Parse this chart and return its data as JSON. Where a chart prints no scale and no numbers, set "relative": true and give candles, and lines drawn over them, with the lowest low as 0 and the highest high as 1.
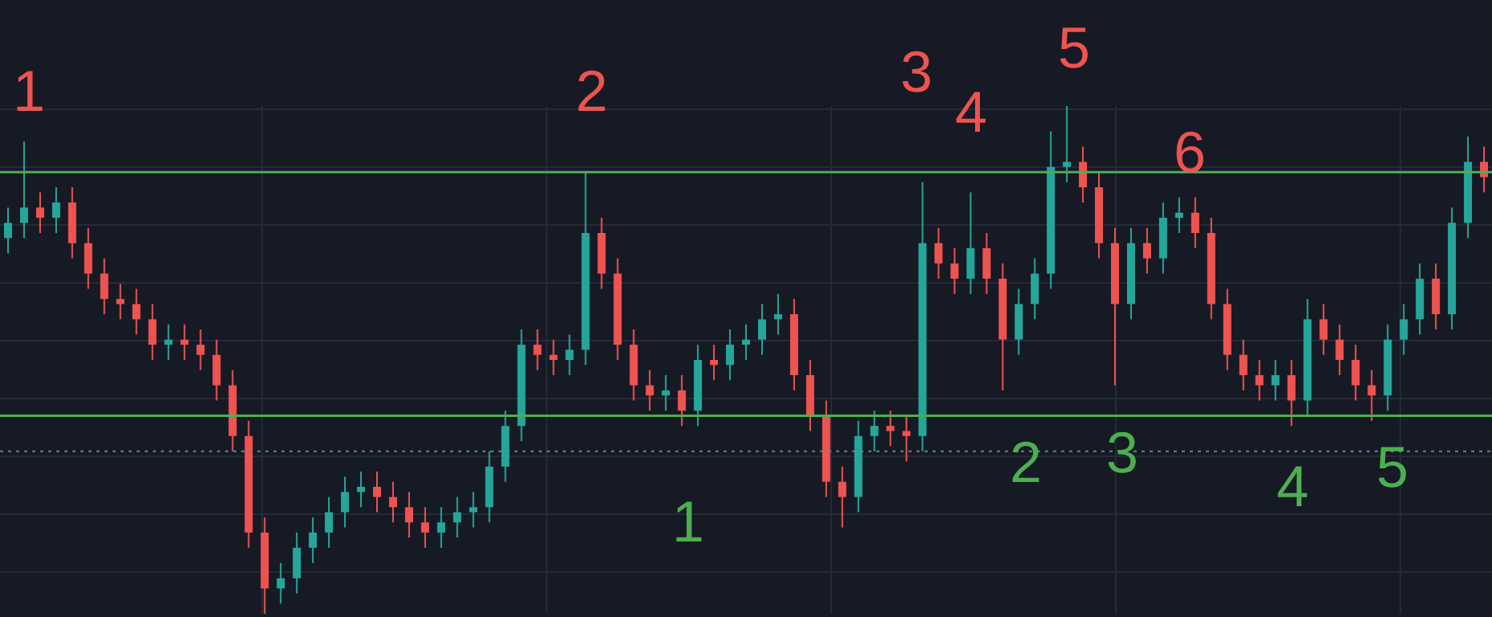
{
  "chart_data": {
    "type": "candlestick",
    "relative": true,
    "grid": true,
    "categories": [
      null,
      null,
      null,
      null,
      null,
      null,
      null,
      null,
      null,
      null,
      null,
      null,
      null,
      null,
      null,
      null,
      null,
      null,
      null,
      null,
      null,
      null,
      null,
      null,
      null,
      null,
      null,
      null,
      null,
      null,
      null,
      null,
      null,
      null,
      null,
      null,
      null,
      null,
      null,
      null,
      null,
      null,
      null,
      null,
      null,
      null,
      null,
      null,
      null,
      null,
      null,
      null,
      null,
      null,
      null,
      null,
      null,
      null,
      null,
      null,
      null,
      null,
      null,
      null,
      null,
      null,
      null,
      null,
      null,
      null,
      null,
      null,
      null,
      null,
      null,
      null,
      null,
      null,
      null,
      null,
      null,
      null,
      null,
      null,
      null,
      null,
      null,
      null,
      null,
      null,
      null,
      null,
      null
    ],
    "ohlc": [
      [
        0.74,
        0.8,
        0.71,
        0.77
      ],
      [
        0.77,
        0.93,
        0.74,
        0.8
      ],
      [
        0.8,
        0.83,
        0.75,
        0.78
      ],
      [
        0.78,
        0.84,
        0.75,
        0.81
      ],
      [
        0.81,
        0.84,
        0.7,
        0.73
      ],
      [
        0.73,
        0.76,
        0.64,
        0.67
      ],
      [
        0.67,
        0.7,
        0.59,
        0.62
      ],
      [
        0.62,
        0.65,
        0.58,
        0.61
      ],
      [
        0.61,
        0.64,
        0.55,
        0.58
      ],
      [
        0.58,
        0.61,
        0.5,
        0.53
      ],
      [
        0.53,
        0.57,
        0.5,
        0.54
      ],
      [
        0.54,
        0.57,
        0.5,
        0.53
      ],
      [
        0.53,
        0.56,
        0.48,
        0.51
      ],
      [
        0.51,
        0.54,
        0.42,
        0.45
      ],
      [
        0.45,
        0.48,
        0.32,
        0.35
      ],
      [
        0.35,
        0.38,
        0.13,
        0.16
      ],
      [
        0.16,
        0.19,
        0,
        0.05
      ],
      [
        0.05,
        0.1,
        0.02,
        0.07
      ],
      [
        0.07,
        0.16,
        0.04,
        0.13
      ],
      [
        0.13,
        0.19,
        0.1,
        0.16
      ],
      [
        0.16,
        0.23,
        0.13,
        0.2
      ],
      [
        0.2,
        0.27,
        0.17,
        0.24
      ],
      [
        0.24,
        0.28,
        0.21,
        0.25
      ],
      [
        0.25,
        0.28,
        0.2,
        0.23
      ],
      [
        0.23,
        0.26,
        0.18,
        0.21
      ],
      [
        0.21,
        0.24,
        0.15,
        0.18
      ],
      [
        0.18,
        0.21,
        0.13,
        0.16
      ],
      [
        0.16,
        0.21,
        0.13,
        0.18
      ],
      [
        0.18,
        0.23,
        0.15,
        0.2
      ],
      [
        0.2,
        0.24,
        0.17,
        0.21
      ],
      [
        0.21,
        0.32,
        0.18,
        0.29
      ],
      [
        0.29,
        0.4,
        0.26,
        0.37
      ],
      [
        0.37,
        0.56,
        0.34,
        0.53
      ],
      [
        0.53,
        0.56,
        0.48,
        0.51
      ],
      [
        0.51,
        0.54,
        0.47,
        0.5
      ],
      [
        0.5,
        0.55,
        0.47,
        0.52
      ],
      [
        0.52,
        0.87,
        0.49,
        0.75
      ],
      [
        0.75,
        0.78,
        0.64,
        0.67
      ],
      [
        0.67,
        0.7,
        0.5,
        0.53
      ],
      [
        0.53,
        0.56,
        0.42,
        0.45
      ],
      [
        0.45,
        0.48,
        0.4,
        0.43
      ],
      [
        0.43,
        0.47,
        0.4,
        0.44
      ],
      [
        0.44,
        0.47,
        0.37,
        0.4
      ],
      [
        0.4,
        0.53,
        0.37,
        0.5
      ],
      [
        0.5,
        0.53,
        0.46,
        0.49
      ],
      [
        0.49,
        0.56,
        0.46,
        0.53
      ],
      [
        0.53,
        0.57,
        0.5,
        0.54
      ],
      [
        0.54,
        0.61,
        0.51,
        0.58
      ],
      [
        0.58,
        0.63,
        0.55,
        0.59
      ],
      [
        0.59,
        0.62,
        0.44,
        0.47
      ],
      [
        0.47,
        0.5,
        0.36,
        0.39
      ],
      [
        0.39,
        0.42,
        0.23,
        0.26
      ],
      [
        0.26,
        0.29,
        0.17,
        0.23
      ],
      [
        0.23,
        0.38,
        0.2,
        0.35
      ],
      [
        0.35,
        0.4,
        0.32,
        0.37
      ],
      [
        0.37,
        0.4,
        0.33,
        0.36
      ],
      [
        0.36,
        0.39,
        0.3,
        0.35
      ],
      [
        0.35,
        0.85,
        0.32,
        0.73
      ],
      [
        0.73,
        0.76,
        0.66,
        0.69
      ],
      [
        0.69,
        0.72,
        0.63,
        0.66
      ],
      [
        0.66,
        0.83,
        0.63,
        0.72
      ],
      [
        0.72,
        0.75,
        0.63,
        0.66
      ],
      [
        0.66,
        0.69,
        0.44,
        0.54
      ],
      [
        0.54,
        0.64,
        0.51,
        0.61
      ],
      [
        0.61,
        0.7,
        0.58,
        0.67
      ],
      [
        0.67,
        0.95,
        0.64,
        0.88
      ],
      [
        0.88,
        1,
        0.85,
        0.89
      ],
      [
        0.89,
        0.92,
        0.81,
        0.84
      ],
      [
        0.84,
        0.87,
        0.7,
        0.73
      ],
      [
        0.73,
        0.76,
        0.45,
        0.61
      ],
      [
        0.61,
        0.76,
        0.58,
        0.73
      ],
      [
        0.73,
        0.76,
        0.67,
        0.7
      ],
      [
        0.7,
        0.81,
        0.67,
        0.78
      ],
      [
        0.78,
        0.82,
        0.75,
        0.79
      ],
      [
        0.79,
        0.82,
        0.72,
        0.75
      ],
      [
        0.75,
        0.78,
        0.58,
        0.61
      ],
      [
        0.61,
        0.64,
        0.48,
        0.51
      ],
      [
        0.51,
        0.54,
        0.44,
        0.47
      ],
      [
        0.47,
        0.5,
        0.42,
        0.45
      ],
      [
        0.45,
        0.5,
        0.42,
        0.47
      ],
      [
        0.47,
        0.5,
        0.37,
        0.42
      ],
      [
        0.42,
        0.62,
        0.39,
        0.58
      ],
      [
        0.58,
        0.61,
        0.51,
        0.54
      ],
      [
        0.54,
        0.57,
        0.47,
        0.5
      ],
      [
        0.5,
        0.53,
        0.42,
        0.45
      ],
      [
        0.45,
        0.48,
        0.38,
        0.43
      ],
      [
        0.43,
        0.57,
        0.4,
        0.54
      ],
      [
        0.54,
        0.61,
        0.51,
        0.58
      ],
      [
        0.58,
        0.69,
        0.55,
        0.66
      ],
      [
        0.66,
        0.69,
        0.56,
        0.59
      ],
      [
        0.59,
        0.8,
        0.56,
        0.77
      ],
      [
        0.77,
        0.94,
        0.74,
        0.89
      ],
      [
        0.89,
        0.92,
        0.83,
        0.86
      ]
    ],
    "ref_lines": [
      {
        "axis": "y",
        "value": 0.87,
        "color": "#4caf50"
      },
      {
        "axis": "y",
        "value": 0.39,
        "color": "#4caf50"
      },
      {
        "axis": "y",
        "value": 0.32,
        "color": "#5d8a8a",
        "line_style": "dotted"
      }
    ],
    "annotations": [
      "1",
      "2",
      "3",
      "4",
      "5",
      "6",
      "1",
      "2",
      "3",
      "4",
      "5"
    ]
  }
}
